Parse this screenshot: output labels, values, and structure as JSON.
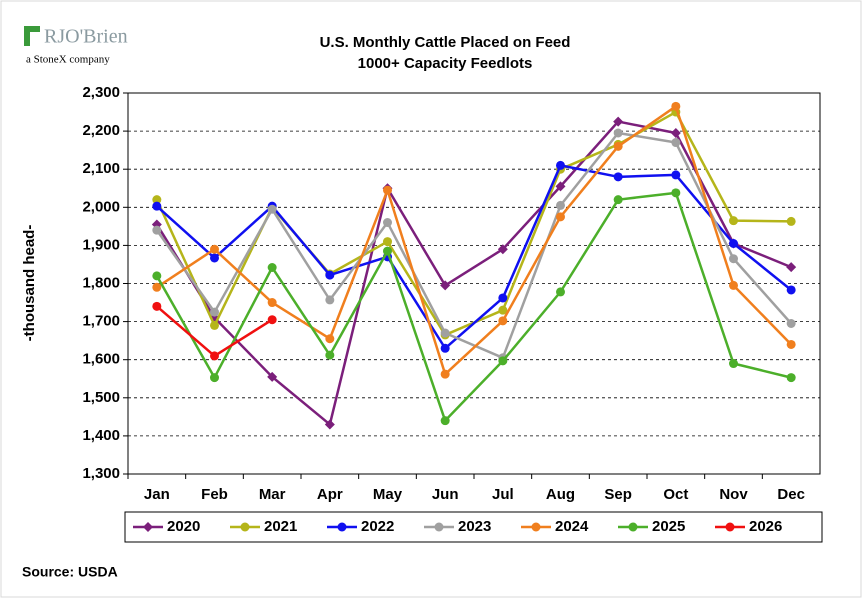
{
  "logo": {
    "name": "RJO'Brien",
    "tagline": "a StoneX company"
  },
  "source": "Source: USDA",
  "chart_data": {
    "type": "line",
    "title": "U.S. Monthly Cattle Placed on Feed",
    "subtitle": "1000+ Capacity Feedlots",
    "y_label": "-thousand head-",
    "categories": [
      "Jan",
      "Feb",
      "Mar",
      "Apr",
      "May",
      "Jun",
      "Jul",
      "Aug",
      "Sep",
      "Oct",
      "Nov",
      "Dec"
    ],
    "ylim": [
      1300,
      2300
    ],
    "yticks": [
      {
        "value": 1300,
        "label": "1,300"
      },
      {
        "value": 1400,
        "label": "1,400"
      },
      {
        "value": 1500,
        "label": "1,500"
      },
      {
        "value": 1600,
        "label": "1,600"
      },
      {
        "value": 1700,
        "label": "1,700"
      },
      {
        "value": 1800,
        "label": "1,800"
      },
      {
        "value": 1900,
        "label": "1,900"
      },
      {
        "value": 2000,
        "label": "2,000"
      },
      {
        "value": 2100,
        "label": "2,100"
      },
      {
        "value": 2200,
        "label": "2,200"
      },
      {
        "value": 2300,
        "label": "2,300"
      }
    ],
    "grid": true,
    "legend": "bottom",
    "series": [
      {
        "name": "2020",
        "color": "#7b1f7b",
        "marker": "diamond",
        "values": [
          1955,
          1710,
          1555,
          1430,
          2050,
          1795,
          1890,
          2055,
          2225,
          2195,
          1905,
          1843
        ]
      },
      {
        "name": "2021",
        "color": "#b5b51a",
        "marker": "circle",
        "values": [
          2020,
          1690,
          2000,
          1825,
          1910,
          1665,
          1730,
          2100,
          2165,
          2250,
          1965,
          1963
        ]
      },
      {
        "name": "2022",
        "color": "#1010f0",
        "marker": "circle",
        "values": [
          2003,
          1867,
          2003,
          1822,
          1870,
          1630,
          1762,
          2110,
          2080,
          2085,
          1905,
          1783
        ]
      },
      {
        "name": "2023",
        "color": "#a0a0a0",
        "marker": "circle",
        "values": [
          1940,
          1725,
          1995,
          1757,
          1960,
          1670,
          1605,
          2005,
          2195,
          2170,
          1865,
          1695
        ]
      },
      {
        "name": "2024",
        "color": "#f07f1e",
        "marker": "circle",
        "values": [
          1790,
          1890,
          1750,
          1655,
          2045,
          1562,
          1702,
          1975,
          2160,
          2265,
          1795,
          1640
        ]
      },
      {
        "name": "2025",
        "color": "#4caf2a",
        "marker": "circle",
        "values": [
          1820,
          1553,
          1842,
          1612,
          1885,
          1440,
          1597,
          1778,
          2020,
          2038,
          1590,
          1553
        ]
      },
      {
        "name": "2026",
        "color": "#f01010",
        "marker": "circle",
        "values": [
          1740,
          1610,
          1705,
          null,
          null,
          null,
          null,
          null,
          null,
          null,
          null,
          null
        ]
      }
    ]
  }
}
